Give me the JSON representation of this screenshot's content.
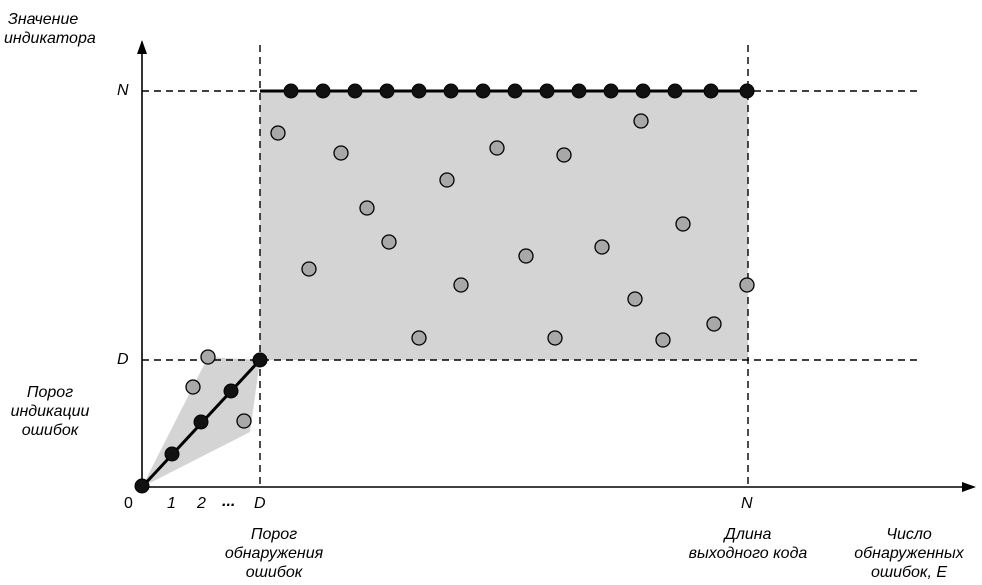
{
  "labels": {
    "y_axis_title_line1": "Значение",
    "y_axis_title_line2": "индикатора",
    "y_tick_n": "N",
    "y_tick_d": "D",
    "origin": "0",
    "x_tick_1": "1",
    "x_tick_2": "2",
    "x_tick_dots": "...",
    "x_tick_d": "D",
    "x_tick_n": "N",
    "left_note_line1": "Порог",
    "left_note_line2": "индикации",
    "left_note_line3": "ошибок",
    "x_note_d_line1": "Порог",
    "x_note_d_line2": "обнаружения",
    "x_note_d_line3": "ошибок",
    "x_note_n_line1": "Длина",
    "x_note_n_line2": "выходного кода",
    "x_axis_title_line1": "Число",
    "x_axis_title_line2": "обнаруженных",
    "x_axis_title_line3": "ошибок, E"
  },
  "colors": {
    "region_fill": "#d4d4d4",
    "gray_point": "#a8a8a8",
    "black_point": "#111111",
    "lines": "#000000"
  }
}
